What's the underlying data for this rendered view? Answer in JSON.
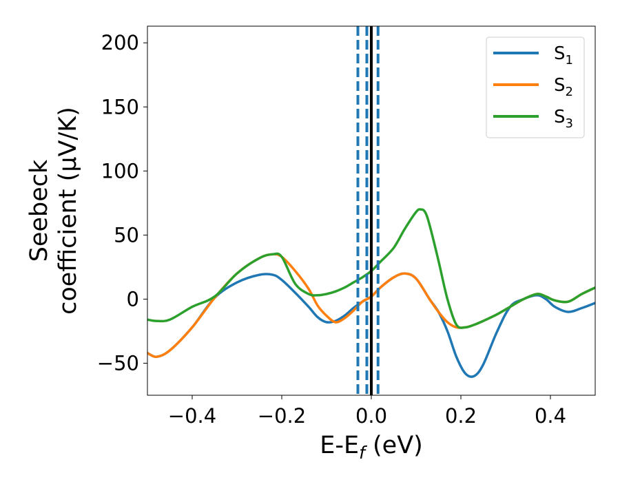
{
  "chart_data": {
    "type": "line",
    "title": "",
    "xlabel": {
      "base": "E-E",
      "sub": "f",
      "unit": " (eV)"
    },
    "ylabel": {
      "line1": "Seebeck",
      "line2": "coefficient  (μV/K)"
    },
    "xlim": [
      -0.5,
      0.5
    ],
    "ylim": [
      -75,
      213
    ],
    "xticks": [
      -0.4,
      -0.2,
      0.0,
      0.2,
      0.4
    ],
    "xtick_labels": [
      "−0.4",
      "−0.2",
      "0.0",
      "0.2",
      "0.4"
    ],
    "yticks": [
      -50,
      0,
      50,
      100,
      150,
      200
    ],
    "ytick_labels": [
      "−50",
      "0",
      "50",
      "100",
      "150",
      "200"
    ],
    "grid": false,
    "legend_position": "top-right",
    "series": [
      {
        "name": "S",
        "sub": "1",
        "color": "#1f77b4",
        "x": [
          -0.5,
          -0.48,
          -0.45,
          -0.4,
          -0.35,
          -0.3,
          -0.25,
          -0.22,
          -0.2,
          -0.17,
          -0.14,
          -0.12,
          -0.1,
          -0.08,
          -0.06,
          -0.04,
          -0.02,
          0.0,
          0.02,
          0.05,
          0.075,
          0.1,
          0.13,
          0.15,
          0.17,
          0.19,
          0.21,
          0.23,
          0.25,
          0.28,
          0.31,
          0.34,
          0.37,
          0.39,
          0.41,
          0.44,
          0.47,
          0.5
        ],
        "y": [
          -42,
          -45,
          -40,
          -22,
          1,
          13,
          19,
          19,
          15,
          5,
          -6,
          -14,
          -18,
          -17,
          -13,
          -7,
          -2,
          2,
          9,
          17,
          20,
          16,
          0,
          -10,
          -25,
          -45,
          -58,
          -60,
          -51,
          -26,
          -6,
          0,
          3,
          0,
          -6,
          -10,
          -7,
          -3
        ]
      },
      {
        "name": "S",
        "sub": "2",
        "color": "#ff7f0e",
        "x": [
          -0.5,
          -0.48,
          -0.45,
          -0.4,
          -0.35,
          -0.3,
          -0.25,
          -0.22,
          -0.2,
          -0.17,
          -0.14,
          -0.12,
          -0.1,
          -0.08,
          -0.06,
          -0.04,
          -0.02,
          0.0,
          0.02,
          0.05,
          0.075,
          0.1,
          0.13,
          0.15,
          0.17,
          0.19,
          0.21,
          0.23,
          0.25,
          0.28,
          0.31,
          0.34,
          0.37,
          0.39,
          0.41,
          0.44,
          0.47,
          0.5
        ],
        "y": [
          -42,
          -45,
          -40,
          -22,
          1,
          20,
          32,
          35,
          33,
          22,
          8,
          -5,
          -13,
          -18,
          -15,
          -9,
          -2,
          2,
          9,
          17,
          20,
          16,
          0,
          -10,
          -18,
          -22,
          -22,
          -20,
          -17,
          -12,
          -6,
          0,
          4,
          2,
          -1,
          -2,
          4,
          9
        ]
      },
      {
        "name": "S",
        "sub": "3",
        "color": "#2ca02c",
        "x": [
          -0.5,
          -0.48,
          -0.45,
          -0.4,
          -0.35,
          -0.3,
          -0.25,
          -0.22,
          -0.2,
          -0.17,
          -0.14,
          -0.12,
          -0.1,
          -0.08,
          -0.06,
          -0.04,
          -0.02,
          0.0,
          0.02,
          0.05,
          0.075,
          0.1,
          0.11,
          0.12,
          0.13,
          0.15,
          0.17,
          0.19,
          0.21,
          0.23,
          0.25,
          0.28,
          0.31,
          0.34,
          0.37,
          0.39,
          0.41,
          0.44,
          0.47,
          0.5
        ],
        "y": [
          -16,
          -17,
          -16,
          -6,
          2,
          20,
          32,
          35,
          33,
          12,
          4,
          3,
          4,
          6,
          9,
          13,
          17,
          22,
          29,
          40,
          55,
          68,
          70,
          68,
          58,
          30,
          0,
          -20,
          -22,
          -20,
          -17,
          -12,
          -6,
          0,
          4,
          2,
          -1,
          -2,
          4,
          9
        ]
      }
    ],
    "reference_lines": [
      {
        "x": 0.0,
        "style": "solid",
        "color": "#000000"
      },
      {
        "x": -0.03,
        "style": "dashed",
        "color": "#1f77b4"
      },
      {
        "x": -0.01,
        "style": "dashed",
        "color": "#1f77b4"
      },
      {
        "x": 0.015,
        "style": "dashed",
        "color": "#1f77b4"
      }
    ]
  }
}
